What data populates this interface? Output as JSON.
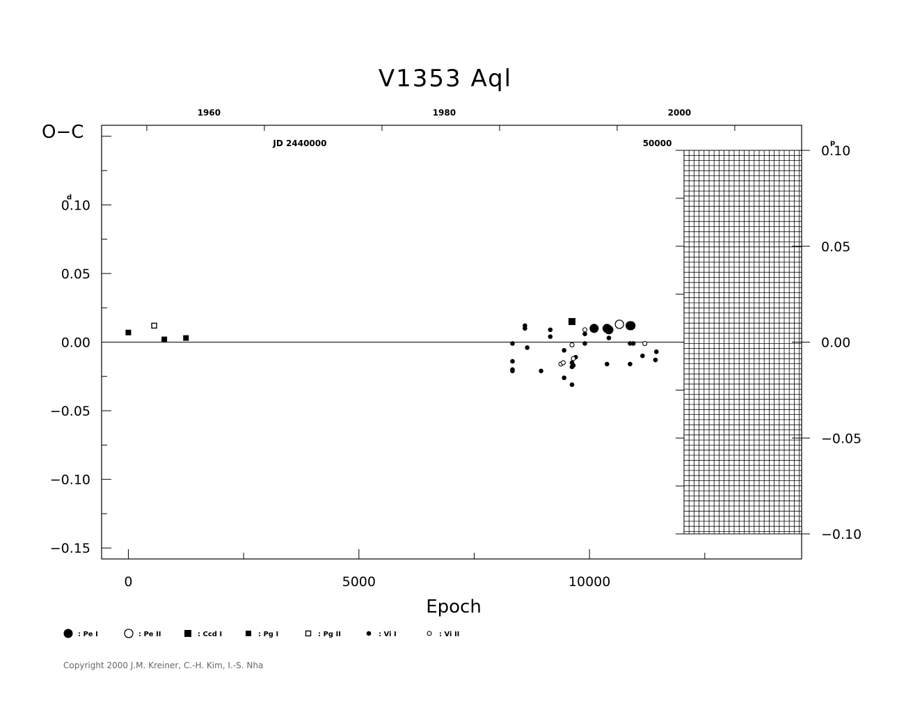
{
  "chart_data": {
    "type": "scatter",
    "title": "V1353  Aql",
    "ylabel": "O−C",
    "xlabel": "Epoch",
    "ylabel_left_unit": "d",
    "ylabel_right_unit": "p",
    "xlim": [
      -580,
      14600
    ],
    "ylim": [
      -0.158,
      0.158
    ],
    "x_ticks": [
      "0",
      "5000",
      "10000"
    ],
    "x_tick_values": [
      0,
      5000,
      10000
    ],
    "y_ticks": [
      "0.10",
      "0.05",
      "0.00",
      "−0.05",
      "−0.10",
      "−0.15"
    ],
    "y_tick_values": [
      0.1,
      0.05,
      0.0,
      -0.05,
      -0.1,
      -0.15
    ],
    "top_axis_years": [
      "1960",
      "1980",
      "2000"
    ],
    "top_axis_year_epochs": [
      1750,
      6850,
      11950
    ],
    "top_axis_jd": [
      "JD  2440000",
      "50000"
    ],
    "top_axis_jd_epochs": [
      3720,
      11470
    ],
    "right_ticks": [
      "0.10",
      "0.05",
      "0.00",
      "−0.05",
      "−0.10"
    ],
    "right_tick_values_p": [
      0.1,
      0.05,
      0.0,
      -0.05,
      -0.1
    ],
    "right_scale_ratio": 1.41,
    "grid_region_epoch_start": 12050,
    "series": [
      {
        "name": ": Pe  I",
        "marker": "filled-circle-large",
        "points": [
          [
            10100,
            0.01
          ],
          [
            10380,
            0.01
          ],
          [
            10420,
            0.009
          ],
          [
            10880,
            0.012
          ],
          [
            10900,
            0.012
          ]
        ]
      },
      {
        "name": ": Pe  II",
        "marker": "open-circle-large",
        "points": [
          [
            10650,
            0.013
          ]
        ]
      },
      {
        "name": ": Ccd  I",
        "marker": "filled-square-large",
        "points": [
          [
            9620,
            0.015
          ]
        ]
      },
      {
        "name": ": Pg  I",
        "marker": "filled-square-small",
        "points": [
          [
            0,
            0.007
          ],
          [
            780,
            0.002
          ],
          [
            1250,
            0.003
          ]
        ]
      },
      {
        "name": ": Pg  II",
        "marker": "open-square-small",
        "points": [
          [
            560,
            0.012
          ]
        ]
      },
      {
        "name": ": Vi  I",
        "marker": "filled-circle-small",
        "points": [
          [
            8330,
            -0.001
          ],
          [
            8330,
            -0.014
          ],
          [
            8330,
            -0.02
          ],
          [
            8330,
            -0.021
          ],
          [
            8600,
            0.012
          ],
          [
            8600,
            0.01
          ],
          [
            8650,
            -0.004
          ],
          [
            8950,
            -0.021
          ],
          [
            9150,
            0.009
          ],
          [
            9150,
            0.004
          ],
          [
            9450,
            -0.006
          ],
          [
            9450,
            -0.026
          ],
          [
            9620,
            -0.015
          ],
          [
            9620,
            -0.018
          ],
          [
            9620,
            -0.031
          ],
          [
            9650,
            -0.017
          ],
          [
            9700,
            -0.011
          ],
          [
            9900,
            -0.001
          ],
          [
            9900,
            0.006
          ],
          [
            10380,
            -0.016
          ],
          [
            10420,
            0.003
          ],
          [
            10880,
            -0.001
          ],
          [
            10880,
            -0.016
          ],
          [
            10950,
            -0.001
          ],
          [
            11150,
            -0.01
          ],
          [
            11430,
            -0.013
          ],
          [
            11450,
            -0.007
          ]
        ]
      },
      {
        "name": ": Vi  II",
        "marker": "open-circle-small",
        "points": [
          [
            9380,
            -0.016
          ],
          [
            9430,
            -0.015
          ],
          [
            9620,
            -0.002
          ],
          [
            9650,
            -0.012
          ],
          [
            9900,
            0.009
          ],
          [
            11200,
            -0.001
          ]
        ]
      }
    ]
  },
  "copyright": "Copyright 2000 J.M. Kreiner, C.-H. Kim, I.-S. Nha"
}
